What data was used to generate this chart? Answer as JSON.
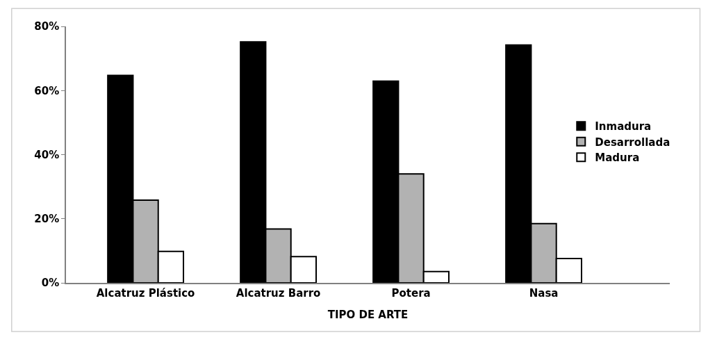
{
  "chart_data": {
    "type": "bar",
    "xlabel": "TIPO DE ARTE",
    "categories": [
      "Alcatruz Plástico",
      "Alcatruz Barro",
      "Potera",
      "Nasa"
    ],
    "series": [
      {
        "name": "Inmadura",
        "color": "#000000",
        "values": [
          64.7,
          75.2,
          62.9,
          74.2
        ]
      },
      {
        "name": "Desarrollada",
        "color": "#b2b2b2",
        "values": [
          25.8,
          16.8,
          34.0,
          18.5
        ]
      },
      {
        "name": "Madura",
        "color": "#ffffff",
        "values": [
          9.8,
          8.2,
          3.5,
          7.6
        ]
      }
    ],
    "ylim": [
      0,
      80
    ],
    "yticks": [
      {
        "value": 0,
        "label": "0%"
      },
      {
        "value": 20,
        "label": "20%"
      },
      {
        "value": 40,
        "label": "40%"
      },
      {
        "value": 60,
        "label": "60%"
      },
      {
        "value": 80,
        "label": "80%"
      }
    ],
    "legend": "right"
  }
}
